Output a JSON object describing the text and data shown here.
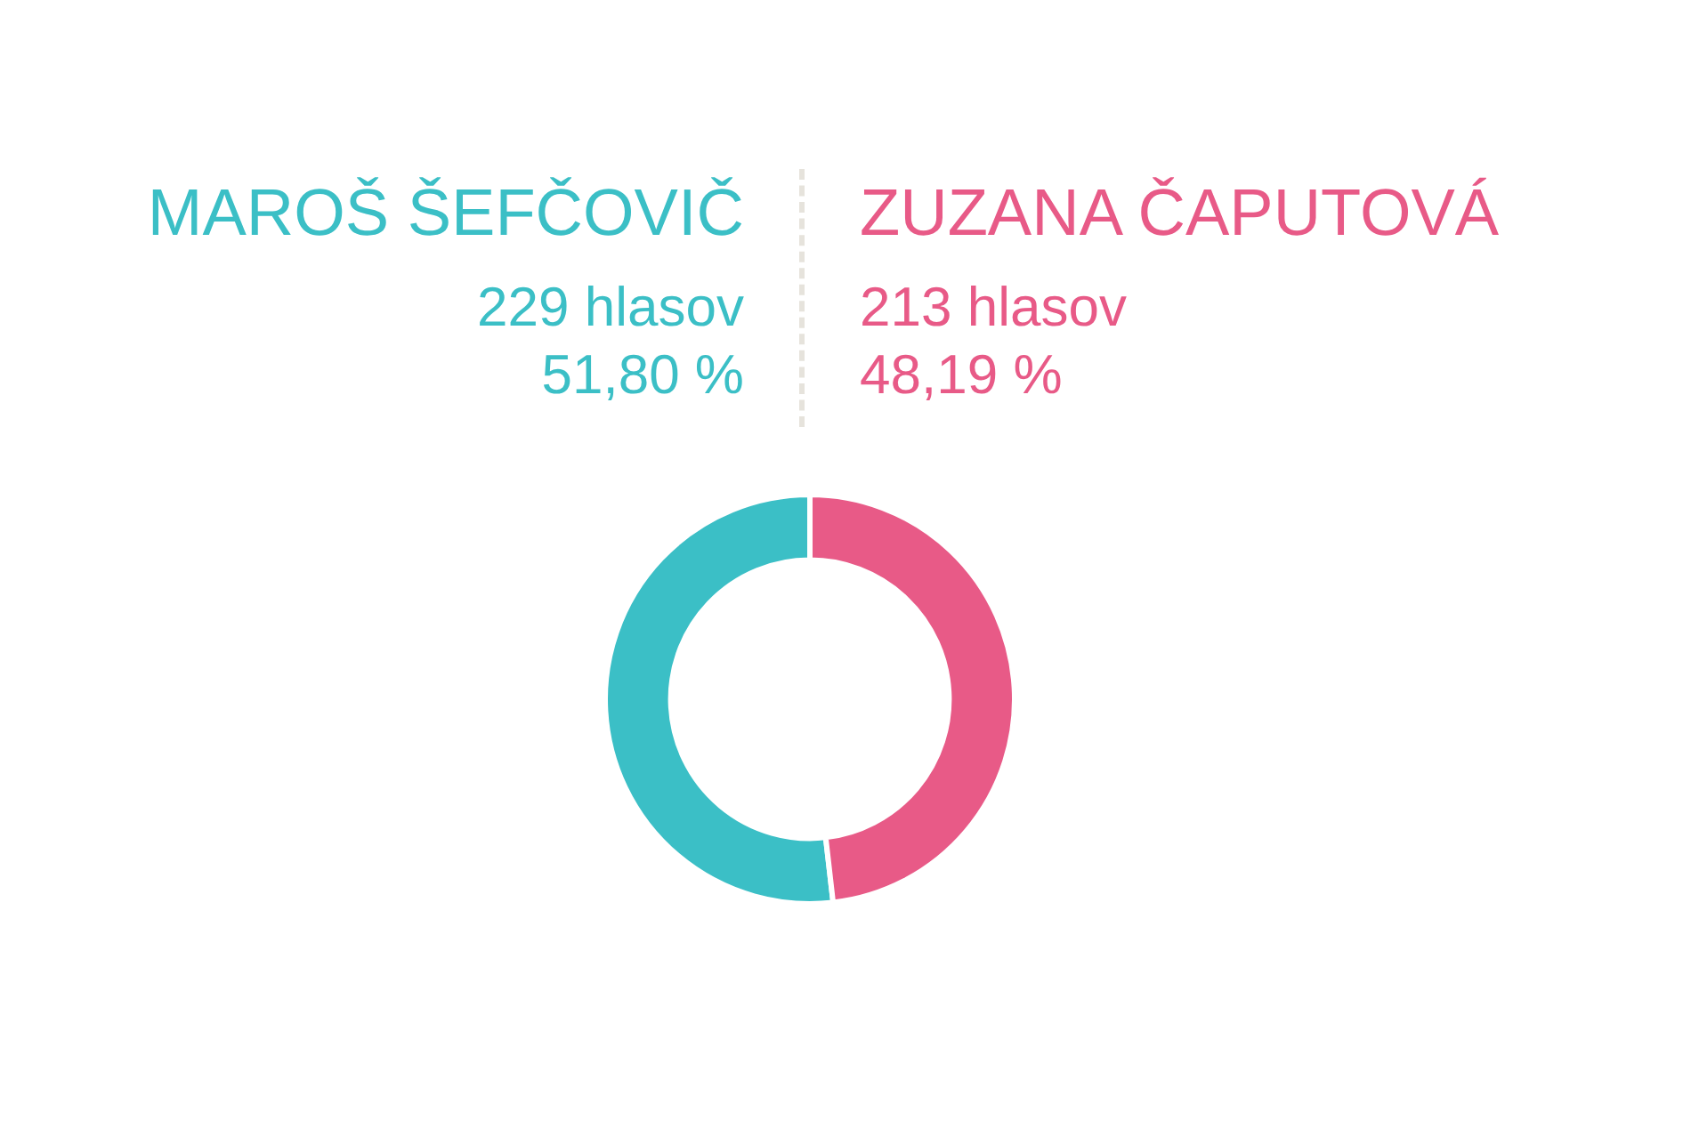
{
  "chart_data": {
    "type": "donut",
    "categories": [
      "MAROŠ ŠEFČOVIČ",
      "ZUZANA ČAPUTOVÁ"
    ],
    "values": [
      229,
      213
    ],
    "colors": [
      "#3bbfc6",
      "#e85a87"
    ],
    "value_labels": [
      "229 hlasov\n51,80 %",
      "213 hlasov\n48,19 %"
    ]
  }
}
